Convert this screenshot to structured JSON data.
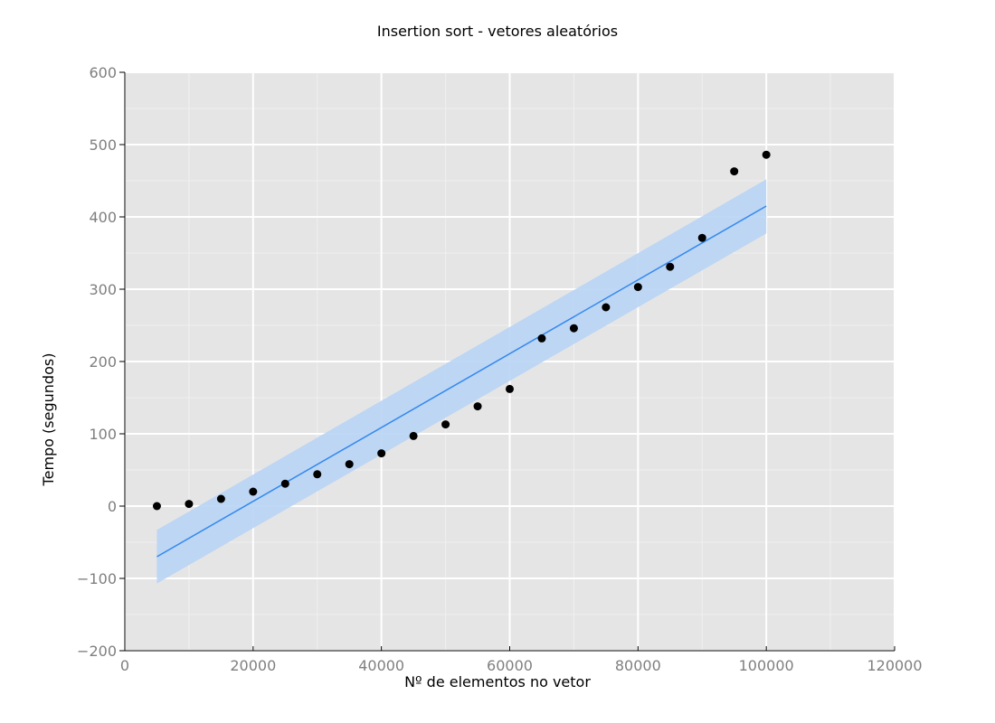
{
  "chart_data": {
    "type": "scatter",
    "title": "Insertion sort - vetores aleatórios",
    "xlabel": "Nº de elementos no vetor",
    "ylabel": "Tempo (segundos)",
    "xlim": [
      0,
      120000
    ],
    "ylim": [
      -200,
      600
    ],
    "x_ticks": [
      0,
      20000,
      40000,
      60000,
      80000,
      100000,
      120000
    ],
    "x_tick_labels": [
      "0",
      "20000",
      "40000",
      "60000",
      "80000",
      "100000",
      "120000"
    ],
    "y_ticks": [
      -200,
      -100,
      0,
      100,
      200,
      300,
      400,
      500,
      600
    ],
    "y_tick_labels": [
      "−200",
      "−100",
      "0",
      "100",
      "200",
      "300",
      "400",
      "500",
      "600"
    ],
    "grid": true,
    "points": {
      "x": [
        5000,
        10000,
        15000,
        20000,
        25000,
        30000,
        35000,
        40000,
        45000,
        50000,
        55000,
        60000,
        65000,
        70000,
        75000,
        80000,
        85000,
        90000,
        95000,
        100000
      ],
      "y": [
        0,
        3,
        10,
        20,
        31,
        44,
        58,
        73,
        97,
        113,
        138,
        162,
        232,
        246,
        275,
        303,
        331,
        371,
        463,
        486
      ]
    },
    "fit": {
      "type": "linear",
      "x_range": [
        5000,
        100000
      ],
      "y_range": [
        -70,
        415
      ],
      "ci_lower": [
        -107,
        377
      ],
      "ci_upper": [
        -33,
        452
      ]
    },
    "colors": {
      "panel_background": "#e5e5e5",
      "grid_major": "#ffffff",
      "grid_minor": "#f0f0f0",
      "points": "#000000",
      "fit_line": "#3388ee",
      "confidence_band": "#b8d4f5",
      "tick_label": "#7f7f7f"
    }
  }
}
